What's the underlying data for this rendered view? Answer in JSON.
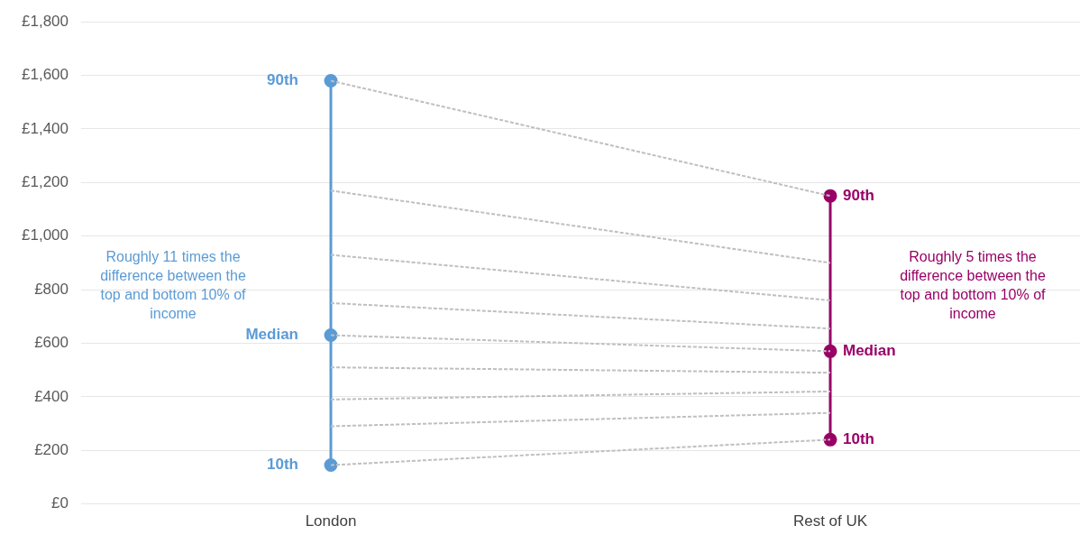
{
  "chart_data": {
    "type": "line",
    "categories": [
      "London",
      "Rest of UK"
    ],
    "ylim": [
      0,
      1800
    ],
    "yticks": [
      {
        "value": 0,
        "label": "£0"
      },
      {
        "value": 200,
        "label": "£200"
      },
      {
        "value": 400,
        "label": "£400"
      },
      {
        "value": 600,
        "label": "£600"
      },
      {
        "value": 800,
        "label": "£800"
      },
      {
        "value": 1000,
        "label": "£1,000"
      },
      {
        "value": 1200,
        "label": "£1,200"
      },
      {
        "value": 1400,
        "label": "£1,400"
      },
      {
        "value": 1600,
        "label": "£1,600"
      },
      {
        "value": 1800,
        "label": "£1,800"
      }
    ],
    "grid": "y",
    "legend": false,
    "series": [
      {
        "color": "#bfbfbf",
        "line_style": "dashed",
        "marker": "none",
        "values": [
          145,
          240
        ]
      },
      {
        "color": "#bfbfbf",
        "line_style": "dashed",
        "marker": "none",
        "values": [
          290,
          340
        ]
      },
      {
        "color": "#bfbfbf",
        "line_style": "dashed",
        "marker": "none",
        "values": [
          390,
          420
        ]
      },
      {
        "color": "#bfbfbf",
        "line_style": "dashed",
        "marker": "none",
        "values": [
          510,
          490
        ]
      },
      {
        "color": "#bfbfbf",
        "line_style": "dashed",
        "marker": "none",
        "values": [
          630,
          570
        ]
      },
      {
        "color": "#bfbfbf",
        "line_style": "dashed",
        "marker": "none",
        "values": [
          750,
          655
        ]
      },
      {
        "color": "#bfbfbf",
        "line_style": "dashed",
        "marker": "none",
        "values": [
          930,
          760
        ]
      },
      {
        "color": "#bfbfbf",
        "line_style": "dashed",
        "marker": "none",
        "values": [
          1170,
          900
        ]
      },
      {
        "color": "#bfbfbf",
        "line_style": "dashed",
        "marker": "none",
        "values": [
          1580,
          1150
        ]
      },
      {
        "color": "#5b9bd5",
        "line_style": "solid",
        "marker": "circle",
        "x": [
          "London",
          "London",
          "London"
        ],
        "values": [
          145,
          630,
          1580
        ]
      },
      {
        "color": "#990066",
        "line_style": "solid",
        "marker": "circle",
        "x": [
          "Rest of UK",
          "Rest of UK",
          "Rest of UK"
        ],
        "values": [
          240,
          570,
          1150
        ]
      }
    ],
    "annotations": [
      {
        "text": "90th",
        "x": "London",
        "y": 1580
      },
      {
        "text": "Median",
        "x": "London",
        "y": 630
      },
      {
        "text": "10th",
        "x": "London",
        "y": 145
      },
      {
        "text": "90th",
        "x": "Rest of UK",
        "y": 1150
      },
      {
        "text": "Median",
        "x": "Rest of UK",
        "y": 570
      },
      {
        "text": "10th",
        "x": "Rest of UK",
        "y": 240
      },
      "Roughly 11 times the difference between the top and bottom 10% of income",
      "Roughly 5 times the difference between the top and bottom 10% of income"
    ]
  }
}
